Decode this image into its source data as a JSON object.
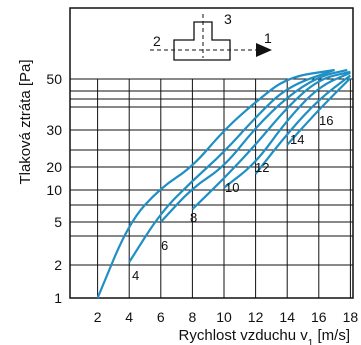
{
  "chart_data": {
    "type": "line",
    "title": "",
    "xlabel": "Rychlost vzduchu v",
    "xlabel_sub": "1",
    "xlabel_unit": " [m/s]",
    "ylabel": "Tlaková ztráta [Pa]",
    "xlim": [
      0,
      18
    ],
    "x_ticks": [
      "2",
      "4",
      "6",
      "8",
      "10",
      "12",
      "14",
      "16",
      "18"
    ],
    "y_ticks": [
      "1",
      "2",
      "5",
      "10",
      "20",
      "30",
      "50"
    ],
    "y_scale": "non-uniform (log-like)",
    "grid": true,
    "line_color": "#1f8fc4",
    "series": [
      {
        "name": "",
        "label": "4",
        "points": [
          [
            2,
            1
          ],
          [
            4,
            5
          ],
          [
            6,
            11
          ],
          [
            8,
            20
          ],
          [
            10,
            30
          ],
          [
            12,
            41
          ],
          [
            14,
            52
          ],
          [
            17,
            62
          ]
        ]
      },
      {
        "name": "",
        "label": "6",
        "points": [
          [
            4,
            2.2
          ],
          [
            6,
            6.5
          ],
          [
            8,
            14
          ],
          [
            10,
            24
          ],
          [
            12,
            35
          ],
          [
            14,
            47
          ],
          [
            17,
            60
          ]
        ]
      },
      {
        "name": "",
        "label": "8",
        "points": [
          [
            6,
            5
          ],
          [
            8,
            11
          ],
          [
            10,
            20
          ],
          [
            12,
            31
          ],
          [
            14,
            43
          ],
          [
            16,
            53
          ],
          [
            17.8,
            60
          ]
        ]
      },
      {
        "name": "",
        "label": "10",
        "points": [
          [
            8,
            7
          ],
          [
            10,
            15
          ],
          [
            12,
            26
          ],
          [
            14,
            39
          ],
          [
            16,
            50
          ],
          [
            18,
            58
          ]
        ]
      },
      {
        "name": "",
        "label": "12",
        "points": [
          [
            10,
            11
          ],
          [
            12,
            21
          ],
          [
            14,
            34
          ],
          [
            16,
            47
          ],
          [
            18,
            57
          ]
        ]
      },
      {
        "name": "",
        "label": "14",
        "points": [
          [
            12,
            17
          ],
          [
            14,
            29
          ],
          [
            16,
            42
          ],
          [
            18,
            54
          ]
        ]
      },
      {
        "name": "",
        "label": "16",
        "points": [
          [
            14,
            26
          ],
          [
            16,
            38
          ],
          [
            18,
            51
          ]
        ]
      }
    ]
  },
  "diagram": {
    "labels": [
      "1",
      "2",
      "3"
    ]
  }
}
